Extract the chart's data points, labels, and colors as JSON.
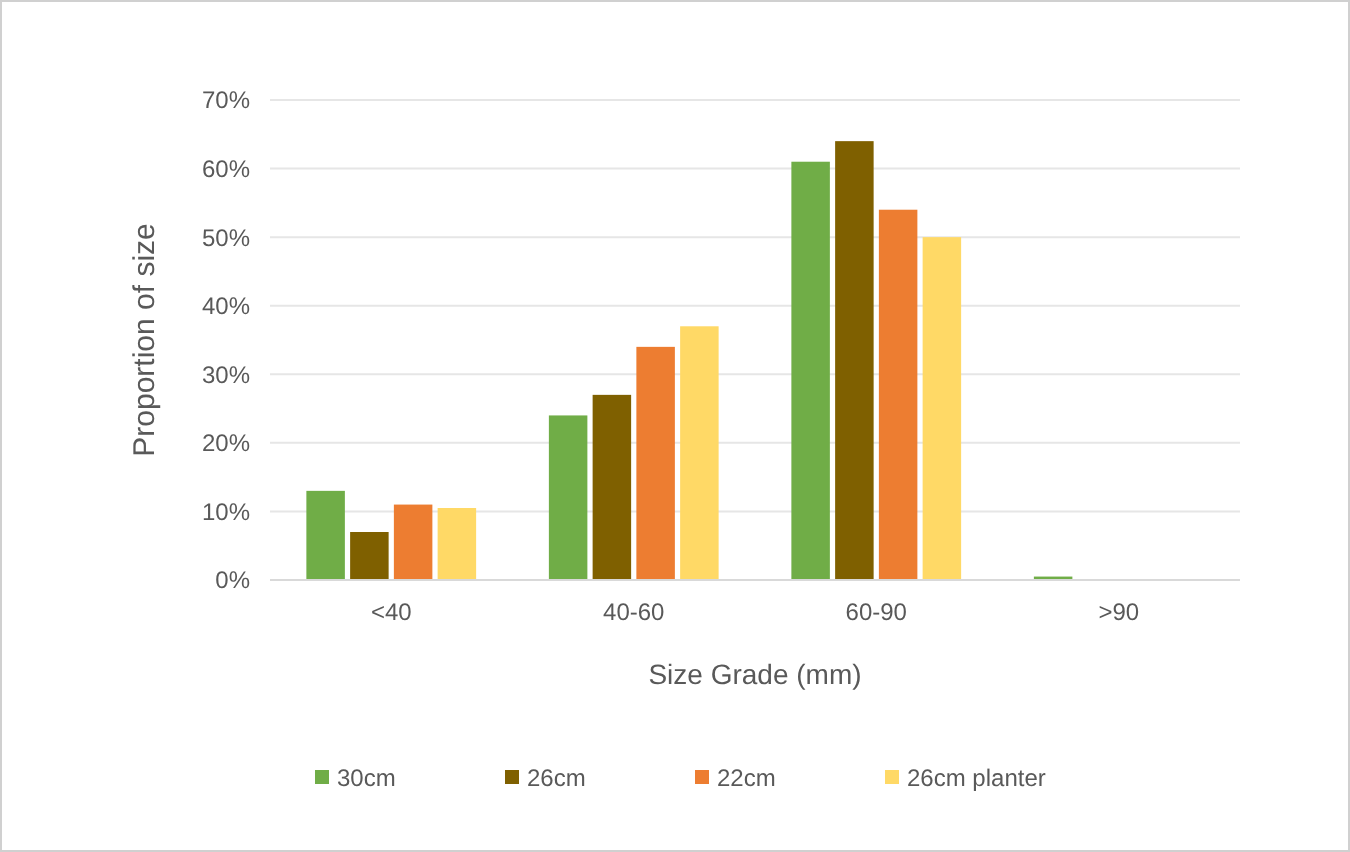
{
  "chart_data": {
    "type": "bar",
    "xlabel": "Size Grade (mm)",
    "ylabel": "Proportion of size",
    "categories": [
      "<40",
      "40-60",
      "60-90",
      ">90"
    ],
    "series": [
      {
        "name": "30cm",
        "color": "#70ad47",
        "values": [
          13,
          24,
          61,
          0.5
        ]
      },
      {
        "name": "26cm",
        "color": "#7f6000",
        "values": [
          7,
          27,
          64,
          null
        ]
      },
      {
        "name": "22cm",
        "color": "#ed7d31",
        "values": [
          11,
          34,
          54,
          0
        ]
      },
      {
        "name": "26cm planter",
        "color": "#ffd966",
        "values": [
          10.5,
          37,
          50,
          0
        ]
      }
    ],
    "ylim": [
      0,
      70
    ],
    "yticks": [
      {
        "value": 0,
        "label": "0%"
      },
      {
        "value": 10,
        "label": "10%"
      },
      {
        "value": 20,
        "label": "20%"
      },
      {
        "value": 30,
        "label": "30%"
      },
      {
        "value": 40,
        "label": "40%"
      },
      {
        "value": 50,
        "label": "50%"
      },
      {
        "value": 60,
        "label": "60%"
      },
      {
        "value": 70,
        "label": "70%"
      }
    ],
    "grid": "y",
    "legend": "bottom"
  }
}
